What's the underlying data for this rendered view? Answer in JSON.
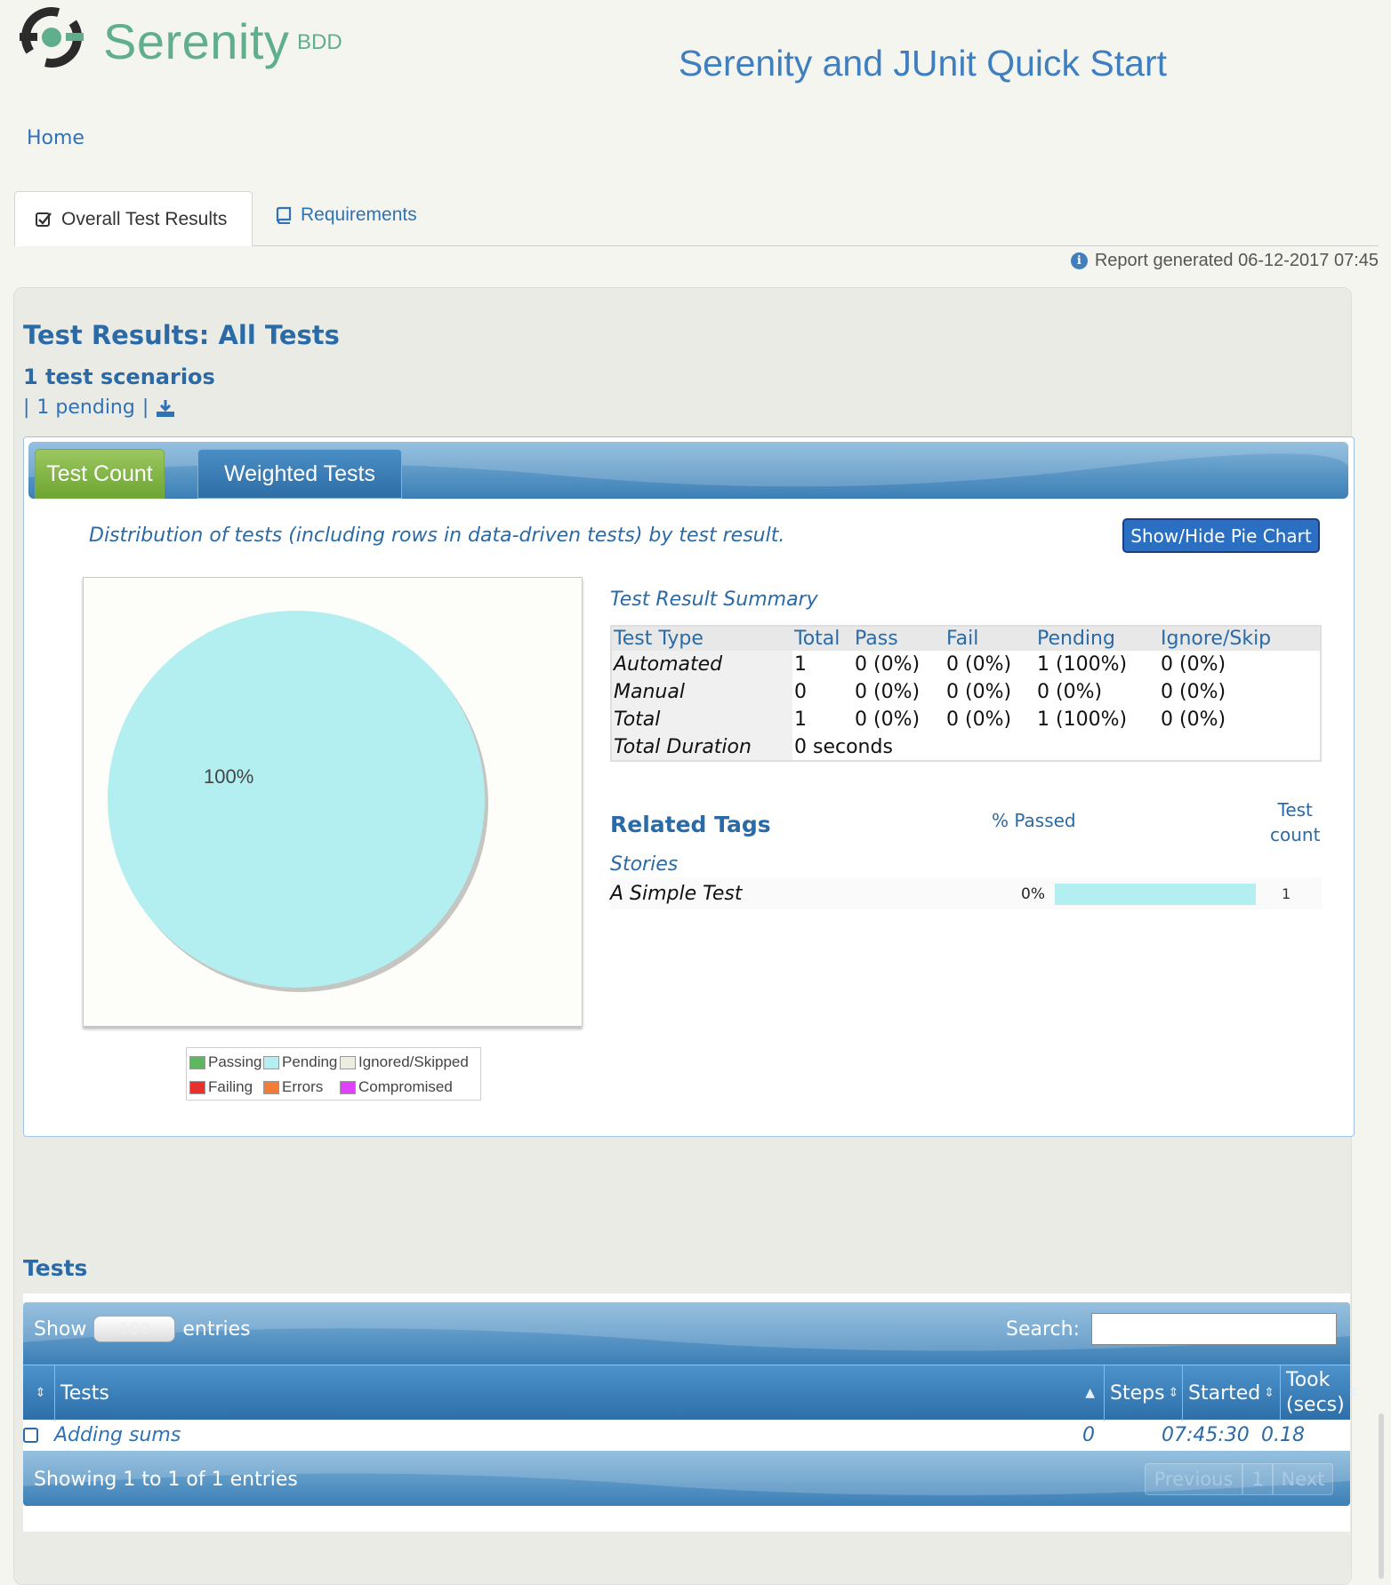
{
  "header": {
    "brand": "Serenity",
    "brand_suffix": "BDD",
    "project_title": "Serenity and JUnit Quick Start",
    "home_link": "Home"
  },
  "tabs": [
    {
      "label": "Overall Test Results",
      "icon": "check-square-icon",
      "active": true
    },
    {
      "label": "Requirements",
      "icon": "book-icon",
      "active": false
    }
  ],
  "report_generated": "Report generated 06-12-2017 07:45",
  "results": {
    "title": "Test Results: All Tests",
    "scenarios": "1 test scenarios",
    "pending_sep": "|",
    "pending": "1 pending",
    "pending_sep2": "|"
  },
  "chart_tabs": {
    "count": "Test Count",
    "weighted": "Weighted Tests"
  },
  "distribution_text": "Distribution of tests (including rows in data-driven tests) by test result.",
  "show_hide_label": "Show/Hide Pie Chart",
  "chart_data": {
    "type": "pie",
    "slices": [
      {
        "label": "Passing",
        "value": 0,
        "color": "#5cb85c"
      },
      {
        "label": "Pending",
        "value": 100,
        "color": "#b3eff1"
      },
      {
        "label": "Ignored/Skipped",
        "value": 0,
        "color": "#eeeee0"
      },
      {
        "label": "Failing",
        "value": 0,
        "color": "#e8312d"
      },
      {
        "label": "Errors",
        "value": 0,
        "color": "#f07c38"
      },
      {
        "label": "Compromised",
        "value": 0,
        "color": "#e040fb"
      }
    ],
    "data_label": "100%",
    "legend": [
      "Passing",
      "Pending",
      "Ignored/Skipped",
      "Failing",
      "Errors",
      "Compromised"
    ],
    "legend_position": "bottom"
  },
  "summary": {
    "title": "Test Result Summary",
    "headers": [
      "Test Type",
      "Total",
      "Pass",
      "Fail",
      "Pending",
      "Ignore/Skip"
    ],
    "rows": [
      [
        "Automated",
        "1",
        "0 (0%)",
        "0 (0%)",
        "1 (100%)",
        "0 (0%)"
      ],
      [
        "Manual",
        "0",
        "0 (0%)",
        "0 (0%)",
        "0 (0%)",
        "0 (0%)"
      ],
      [
        "Total",
        "1",
        "0 (0%)",
        "0 (0%)",
        "1 (100%)",
        "0 (0%)"
      ]
    ],
    "duration_label": "Total Duration",
    "duration_value": "0 seconds"
  },
  "related": {
    "title": "Related Tags",
    "pct_header": "% Passed",
    "count_header_1": "Test",
    "count_header_2": "count",
    "group": "Stories",
    "tag": "A Simple Test",
    "pct": "0%",
    "pending_fraction": 1.0,
    "count": "1"
  },
  "tests": {
    "title": "Tests",
    "show": "Show",
    "entries_value": "100",
    "entries": "entries",
    "search": "Search:",
    "columns": [
      "Tests",
      "Steps",
      "Started",
      "Took",
      "(secs)"
    ],
    "row": {
      "name": "Adding sums",
      "steps": "0",
      "started": "07:45:30",
      "took": "0.18"
    },
    "showing": "Showing 1 to 1 of 1 entries",
    "previous": "Previous",
    "page": "1",
    "next": "Next"
  }
}
